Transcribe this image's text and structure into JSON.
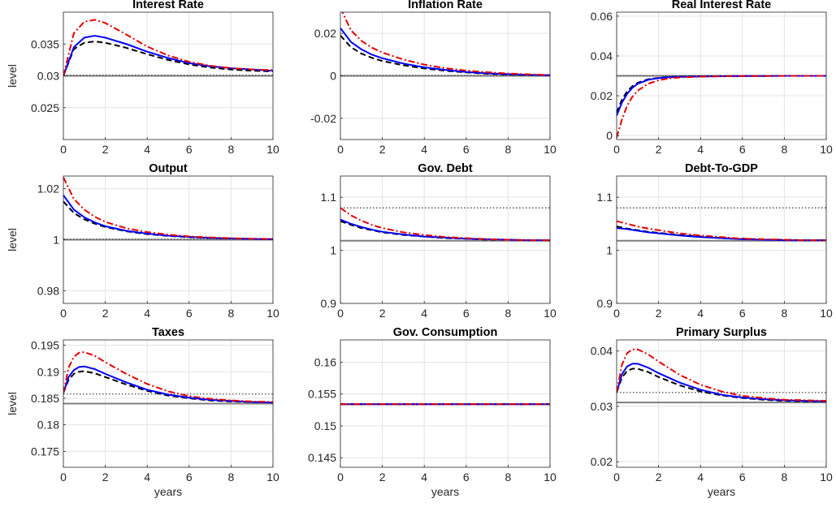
{
  "figure": {
    "xlabel": "years",
    "ylabel": "level"
  },
  "chart_data": [
    {
      "type": "line",
      "title": "Interest Rate",
      "xlim": [
        0,
        10
      ],
      "ylim": [
        0.02,
        0.04
      ],
      "xticks": [
        "0",
        "2",
        "4",
        "6",
        "8",
        "10"
      ],
      "yticks": [
        0.025,
        0.03,
        0.035
      ],
      "ytick_labels": [
        "0.025",
        "0.03",
        "0.035"
      ],
      "grid": true,
      "xlabel": "",
      "ylabel": "level",
      "x": [
        0,
        0.5,
        1,
        1.5,
        2,
        3,
        4,
        5,
        6,
        7,
        8,
        9,
        10
      ],
      "series": [
        {
          "color": "#0000ff",
          "style": "solid",
          "values": [
            0.03,
            0.0345,
            0.036,
            0.0363,
            0.036,
            0.035,
            0.0338,
            0.0328,
            0.032,
            0.0315,
            0.0312,
            0.031,
            0.0308
          ]
        },
        {
          "color": "#000000",
          "style": "dashed",
          "values": [
            0.03,
            0.0342,
            0.0352,
            0.0354,
            0.0352,
            0.0344,
            0.0334,
            0.0325,
            0.0318,
            0.0313,
            0.031,
            0.0308,
            0.0307
          ]
        },
        {
          "color": "#e60000",
          "style": "dashdot",
          "values": [
            0.03,
            0.0367,
            0.0385,
            0.0388,
            0.0383,
            0.0365,
            0.0346,
            0.0332,
            0.0322,
            0.0316,
            0.0312,
            0.031,
            0.0309
          ]
        }
      ],
      "hlines": [
        {
          "y": 0.03,
          "color": "#7f7f7f",
          "style": "solid"
        },
        {
          "y": 0.0301,
          "color": "#555555",
          "style": "dotted"
        }
      ]
    },
    {
      "type": "line",
      "title": "Inflation Rate",
      "xlim": [
        0,
        10
      ],
      "ylim": [
        -0.03,
        0.03
      ],
      "xticks": [
        "0",
        "2",
        "4",
        "6",
        "8",
        "10"
      ],
      "yticks": [
        -0.02,
        0,
        0.02
      ],
      "ytick_labels": [
        "-0.02",
        "0",
        "0.02"
      ],
      "grid": true,
      "xlabel": "",
      "ylabel": "",
      "x": [
        0,
        0.5,
        1,
        1.5,
        2,
        3,
        4,
        5,
        6,
        7,
        8,
        9,
        10
      ],
      "series": [
        {
          "color": "#0000ff",
          "style": "solid",
          "values": [
            0.0225,
            0.016,
            0.0125,
            0.01,
            0.0083,
            0.0058,
            0.004,
            0.0028,
            0.0018,
            0.0012,
            0.0008,
            0.0005,
            0.0003
          ]
        },
        {
          "color": "#000000",
          "style": "dashed",
          "values": [
            0.019,
            0.0135,
            0.0105,
            0.0085,
            0.007,
            0.005,
            0.0035,
            0.0024,
            0.0016,
            0.001,
            0.0006,
            0.0004,
            0.0003
          ]
        },
        {
          "color": "#e60000",
          "style": "dashdot",
          "values": [
            0.032,
            0.0215,
            0.0165,
            0.0133,
            0.011,
            0.0077,
            0.0053,
            0.0036,
            0.0025,
            0.0017,
            0.0011,
            0.0007,
            0.0004
          ]
        }
      ],
      "hlines": [
        {
          "y": 0,
          "color": "#7f7f7f",
          "style": "solid"
        },
        {
          "y": 0.0002,
          "color": "#555555",
          "style": "dotted"
        }
      ]
    },
    {
      "type": "line",
      "title": "Real Interest Rate",
      "xlim": [
        0,
        10
      ],
      "ylim": [
        -0.002,
        0.062
      ],
      "xticks": [
        "0",
        "2",
        "4",
        "6",
        "8",
        "10"
      ],
      "yticks": [
        0,
        0.02,
        0.04,
        0.06
      ],
      "ytick_labels": [
        "0",
        "0.02",
        "0.04",
        "0.06"
      ],
      "grid": true,
      "xlabel": "",
      "ylabel": "",
      "x": [
        0,
        0.25,
        0.5,
        0.75,
        1,
        1.5,
        2,
        2.5,
        3,
        4,
        5,
        6,
        7,
        8,
        9,
        10
      ],
      "series": [
        {
          "color": "#0000ff",
          "style": "solid",
          "values": [
            0.01,
            0.0165,
            0.021,
            0.024,
            0.026,
            0.028,
            0.0289,
            0.0293,
            0.0295,
            0.0297,
            0.0298,
            0.0299,
            0.0299,
            0.03,
            0.03,
            0.03
          ]
        },
        {
          "color": "#000000",
          "style": "dashed",
          "values": [
            0.0115,
            0.018,
            0.0222,
            0.0248,
            0.0265,
            0.0283,
            0.029,
            0.0294,
            0.0296,
            0.0298,
            0.0299,
            0.0299,
            0.03,
            0.03,
            0.03,
            0.03
          ]
        },
        {
          "color": "#e60000",
          "style": "dashdot",
          "values": [
            -0.001,
            0.008,
            0.015,
            0.0195,
            0.0225,
            0.026,
            0.0278,
            0.0287,
            0.0292,
            0.0296,
            0.0298,
            0.0299,
            0.0299,
            0.03,
            0.03,
            0.03
          ]
        }
      ],
      "hlines": [
        {
          "y": 0.03,
          "color": "#7f7f7f",
          "style": "solid"
        },
        {
          "y": 0.0301,
          "color": "#555555",
          "style": "dotted"
        }
      ]
    },
    {
      "type": "line",
      "title": "Output",
      "xlim": [
        0,
        10
      ],
      "ylim": [
        0.975,
        1.025
      ],
      "xticks": [
        "0",
        "2",
        "4",
        "6",
        "8",
        "10"
      ],
      "yticks": [
        0.98,
        1,
        1.02
      ],
      "ytick_labels": [
        "0.98",
        "1",
        "1.02"
      ],
      "grid": true,
      "xlabel": "",
      "ylabel": "level",
      "x": [
        0,
        0.5,
        1,
        1.5,
        2,
        3,
        4,
        5,
        6,
        7,
        8,
        9,
        10
      ],
      "series": [
        {
          "color": "#0000ff",
          "style": "solid",
          "values": [
            1.0175,
            1.0118,
            1.0088,
            1.0068,
            1.0053,
            1.0035,
            1.0024,
            1.0016,
            1.0011,
            1.0007,
            1.0005,
            1.0003,
            1.0002
          ]
        },
        {
          "color": "#000000",
          "style": "dashed",
          "values": [
            1.015,
            1.0105,
            1.008,
            1.0063,
            1.005,
            1.0033,
            1.0022,
            1.0015,
            1.001,
            1.0007,
            1.0005,
            1.0003,
            1.0002
          ]
        },
        {
          "color": "#e60000",
          "style": "dashdot",
          "values": [
            1.0245,
            1.016,
            1.0118,
            1.009,
            1.007,
            1.0045,
            1.003,
            1.002,
            1.0013,
            1.0009,
            1.0006,
            1.0004,
            1.0003
          ]
        }
      ],
      "hlines": [
        {
          "y": 1.0,
          "color": "#7f7f7f",
          "style": "solid"
        },
        {
          "y": 1.0002,
          "color": "#555555",
          "style": "dotted"
        }
      ]
    },
    {
      "type": "line",
      "title": "Gov. Debt",
      "xlim": [
        0,
        10
      ],
      "ylim": [
        0.9,
        1.14
      ],
      "xticks": [
        "0",
        "2",
        "4",
        "6",
        "8",
        "10"
      ],
      "yticks": [
        0.9,
        1,
        1.1
      ],
      "ytick_labels": [
        "0.9",
        "1",
        "1.1"
      ],
      "grid": true,
      "xlabel": "",
      "ylabel": "",
      "x": [
        0,
        0.5,
        1,
        1.5,
        2,
        3,
        4,
        5,
        6,
        7,
        8,
        9,
        10
      ],
      "series": [
        {
          "color": "#0000ff",
          "style": "solid",
          "values": [
            1.058,
            1.05,
            1.044,
            1.039,
            1.035,
            1.03,
            1.026,
            1.024,
            1.022,
            1.021,
            1.02,
            1.019,
            1.019
          ]
        },
        {
          "color": "#000000",
          "style": "dashed",
          "values": [
            1.055,
            1.048,
            1.042,
            1.038,
            1.034,
            1.029,
            1.026,
            1.023,
            1.022,
            1.02,
            1.02,
            1.019,
            1.019
          ]
        },
        {
          "color": "#e60000",
          "style": "dashdot",
          "values": [
            1.08,
            1.066,
            1.056,
            1.048,
            1.042,
            1.034,
            1.029,
            1.025,
            1.023,
            1.021,
            1.02,
            1.019,
            1.019
          ]
        }
      ],
      "hlines": [
        {
          "y": 1.018,
          "color": "#7f7f7f",
          "style": "solid"
        },
        {
          "y": 1.08,
          "color": "#555555",
          "style": "dotted"
        }
      ]
    },
    {
      "type": "line",
      "title": "Debt-To-GDP",
      "xlim": [
        0,
        10
      ],
      "ylim": [
        0.9,
        1.14
      ],
      "xticks": [
        "0",
        "2",
        "4",
        "6",
        "8",
        "10"
      ],
      "yticks": [
        0.9,
        1,
        1.1
      ],
      "ytick_labels": [
        "0.9",
        "1",
        "1.1"
      ],
      "grid": true,
      "xlabel": "",
      "ylabel": "",
      "x": [
        0,
        0.5,
        1,
        1.5,
        2,
        3,
        4,
        5,
        6,
        7,
        8,
        9,
        10
      ],
      "series": [
        {
          "color": "#0000ff",
          "style": "solid",
          "values": [
            1.042,
            1.04,
            1.037,
            1.034,
            1.032,
            1.028,
            1.025,
            1.023,
            1.021,
            1.02,
            1.019,
            1.019,
            1.019
          ]
        },
        {
          "color": "#000000",
          "style": "dashed",
          "values": [
            1.045,
            1.041,
            1.038,
            1.035,
            1.033,
            1.029,
            1.026,
            1.023,
            1.022,
            1.02,
            1.02,
            1.019,
            1.019
          ]
        },
        {
          "color": "#e60000",
          "style": "dashdot",
          "values": [
            1.055,
            1.05,
            1.045,
            1.041,
            1.038,
            1.032,
            1.028,
            1.025,
            1.022,
            1.021,
            1.02,
            1.019,
            1.019
          ]
        }
      ],
      "hlines": [
        {
          "y": 1.018,
          "color": "#7f7f7f",
          "style": "solid"
        },
        {
          "y": 1.08,
          "color": "#555555",
          "style": "dotted"
        }
      ]
    },
    {
      "type": "line",
      "title": "Taxes",
      "xlim": [
        0,
        10
      ],
      "ylim": [
        0.172,
        0.196
      ],
      "xticks": [
        "0",
        "2",
        "4",
        "6",
        "8",
        "10"
      ],
      "yticks": [
        0.175,
        0.18,
        0.185,
        0.19,
        0.195
      ],
      "ytick_labels": [
        "0.175",
        "0.18",
        "0.185",
        "0.19",
        "0.195"
      ],
      "grid": true,
      "xlabel": "years",
      "ylabel": "level",
      "x": [
        0,
        0.25,
        0.5,
        0.75,
        1,
        1.5,
        2,
        3,
        4,
        5,
        6,
        7,
        8,
        9,
        10
      ],
      "series": [
        {
          "color": "#0000ff",
          "style": "solid",
          "values": [
            0.186,
            0.189,
            0.1903,
            0.1909,
            0.191,
            0.1905,
            0.1896,
            0.188,
            0.1866,
            0.1857,
            0.1851,
            0.1847,
            0.1845,
            0.1843,
            0.1842
          ]
        },
        {
          "color": "#000000",
          "style": "dashed",
          "values": [
            0.186,
            0.1885,
            0.1896,
            0.19,
            0.1901,
            0.1897,
            0.189,
            0.1876,
            0.1864,
            0.1855,
            0.185,
            0.1846,
            0.1844,
            0.1843,
            0.1842
          ]
        },
        {
          "color": "#e60000",
          "style": "dashdot",
          "values": [
            0.186,
            0.1908,
            0.1928,
            0.1936,
            0.1937,
            0.193,
            0.1918,
            0.1896,
            0.1877,
            0.1863,
            0.1854,
            0.1849,
            0.1846,
            0.1844,
            0.1843
          ]
        }
      ],
      "hlines": [
        {
          "y": 0.184,
          "color": "#7f7f7f",
          "style": "solid"
        },
        {
          "y": 0.1858,
          "color": "#555555",
          "style": "dotted"
        }
      ]
    },
    {
      "type": "line",
      "title": "Gov. Consumption",
      "xlim": [
        0,
        10
      ],
      "ylim": [
        0.1435,
        0.1635
      ],
      "xticks": [
        "0",
        "2",
        "4",
        "6",
        "8",
        "10"
      ],
      "yticks": [
        0.145,
        0.15,
        0.155,
        0.16
      ],
      "ytick_labels": [
        "0.145",
        "0.15",
        "0.155",
        "0.16"
      ],
      "grid": true,
      "xlabel": "years",
      "ylabel": "",
      "x": [
        0,
        10
      ],
      "series": [
        {
          "color": "#0000ff",
          "style": "solid",
          "values": [
            0.1534,
            0.1534
          ]
        },
        {
          "color": "#000000",
          "style": "dashed",
          "values": [
            0.1534,
            0.1534
          ]
        },
        {
          "color": "#e60000",
          "style": "dashdot",
          "values": [
            0.1534,
            0.1534
          ]
        }
      ],
      "hlines": [
        {
          "y": 0.1534,
          "color": "#7f7f7f",
          "style": "solid"
        },
        {
          "y": 0.1534,
          "color": "#555555",
          "style": "dotted"
        }
      ]
    },
    {
      "type": "line",
      "title": "Primary Surplus",
      "xlim": [
        0,
        10
      ],
      "ylim": [
        0.019,
        0.042
      ],
      "xticks": [
        "0",
        "2",
        "4",
        "6",
        "8",
        "10"
      ],
      "yticks": [
        0.02,
        0.03,
        0.04
      ],
      "ytick_labels": [
        "0.02",
        "0.03",
        "0.04"
      ],
      "grid": true,
      "xlabel": "years",
      "ylabel": "",
      "x": [
        0,
        0.25,
        0.5,
        0.75,
        1,
        1.5,
        2,
        3,
        4,
        5,
        6,
        7,
        8,
        9,
        10
      ],
      "series": [
        {
          "color": "#0000ff",
          "style": "solid",
          "values": [
            0.0325,
            0.0358,
            0.0372,
            0.0377,
            0.0377,
            0.037,
            0.036,
            0.0343,
            0.033,
            0.0321,
            0.0316,
            0.0313,
            0.0311,
            0.031,
            0.0309
          ]
        },
        {
          "color": "#000000",
          "style": "dashed",
          "values": [
            0.0325,
            0.0352,
            0.0364,
            0.0368,
            0.0368,
            0.0362,
            0.0353,
            0.0338,
            0.0327,
            0.032,
            0.0315,
            0.0312,
            0.031,
            0.0309,
            0.0309
          ]
        },
        {
          "color": "#e60000",
          "style": "dashdot",
          "values": [
            0.0325,
            0.0375,
            0.0396,
            0.0403,
            0.0403,
            0.0394,
            0.0381,
            0.0357,
            0.0339,
            0.0327,
            0.0319,
            0.0315,
            0.0312,
            0.0311,
            0.031
          ]
        }
      ],
      "hlines": [
        {
          "y": 0.0307,
          "color": "#7f7f7f",
          "style": "solid"
        },
        {
          "y": 0.0325,
          "color": "#555555",
          "style": "dotted"
        }
      ]
    }
  ]
}
